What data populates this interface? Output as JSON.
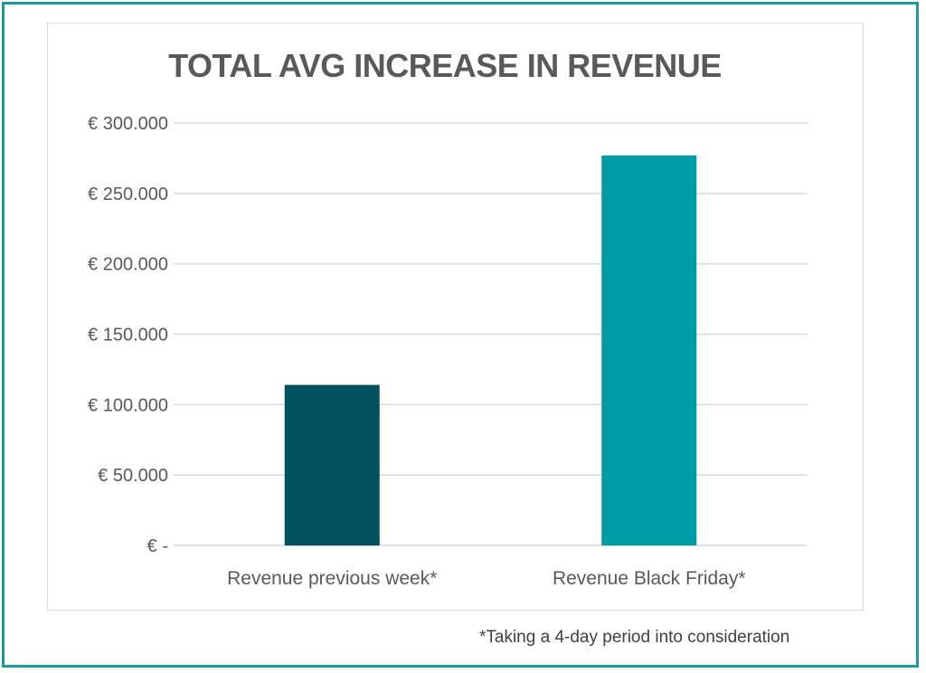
{
  "chart_data": {
    "type": "bar",
    "title": "TOTAL AVG INCREASE IN REVENUE",
    "categories": [
      "Revenue previous week*",
      "Revenue Black Friday*"
    ],
    "values": [
      114000,
      277000
    ],
    "colors": [
      "#00525e",
      "#009ca6"
    ],
    "ylim": [
      0,
      300000
    ],
    "yticks": [
      0,
      50000,
      100000,
      150000,
      200000,
      250000,
      300000
    ],
    "ytick_labels": [
      "€ -",
      "€ 50.000",
      "€ 100.000",
      "€ 150.000",
      "€ 200.000",
      "€ 250.000",
      "€ 300.000"
    ],
    "grid": true,
    "xlabel": "",
    "ylabel": ""
  },
  "footnote": "*Taking a 4-day period into consideration",
  "border_color": "#1a9a9c"
}
